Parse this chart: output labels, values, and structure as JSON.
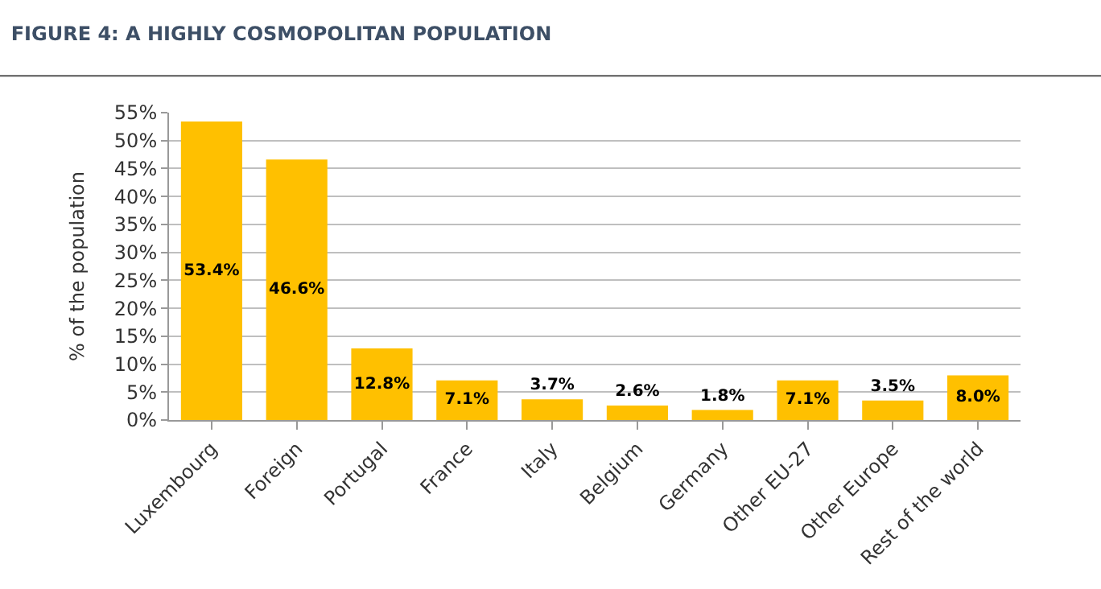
{
  "chart_data": {
    "type": "bar",
    "title": "FIGURE 4: A HIGHLY COSMOPOLITAN POPULATION",
    "ylabel": "% of the population",
    "categories": [
      "Luxembourg",
      "Foreign",
      "Portugal",
      "France",
      "Italy",
      "Belgium",
      "Germany",
      "Other EU-27",
      "Other Europe",
      "Rest of the world"
    ],
    "values": [
      53.4,
      46.6,
      12.8,
      7.1,
      3.7,
      2.6,
      1.8,
      7.1,
      3.5,
      8.0
    ],
    "value_labels": [
      "53.4%",
      "46.6%",
      "12.8%",
      "7.1%",
      "3.7%",
      "2.6%",
      "1.8%",
      "7.1%",
      "3.5%",
      "8.0%"
    ],
    "color": "#ffc000",
    "ylim": [
      0,
      55
    ],
    "yticks": [
      {
        "value": 0,
        "label": "0%"
      },
      {
        "value": 5,
        "label": "5%"
      },
      {
        "value": 10,
        "label": "10%"
      },
      {
        "value": 15,
        "label": "15%"
      },
      {
        "value": 20,
        "label": "20%"
      },
      {
        "value": 25,
        "label": "25%"
      },
      {
        "value": 30,
        "label": "30%"
      },
      {
        "value": 35,
        "label": "35%"
      },
      {
        "value": 40,
        "label": "40%"
      },
      {
        "value": 45,
        "label": "45%"
      },
      {
        "value": 50,
        "label": "50%"
      },
      {
        "value": 55,
        "label": "55%"
      }
    ],
    "grid": "y",
    "legend": false
  }
}
